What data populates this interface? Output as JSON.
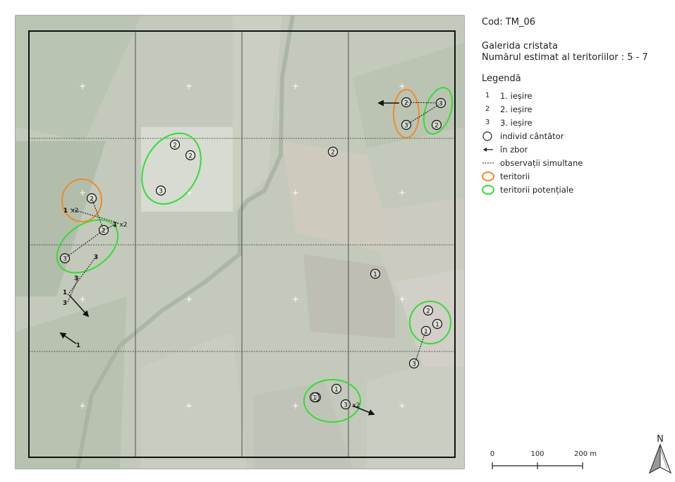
{
  "header": {
    "code": "Cod: TM_06",
    "species": "Galerida cristata",
    "estimate": "Numărul estimat al teritoriilor : 5 - 7"
  },
  "legend": {
    "title": "Legendă",
    "items": [
      {
        "symbol": "1",
        "label": "1. ieșire"
      },
      {
        "symbol": "2",
        "label": "2. ieșire"
      },
      {
        "symbol": "3",
        "label": "3. ieșire"
      },
      {
        "symbol": "circle-icon",
        "label": "individ cântător"
      },
      {
        "symbol": "arrow-left-icon",
        "label": "în zbor"
      },
      {
        "symbol": "dashed-line-icon",
        "label": "observații simultane"
      },
      {
        "symbol": "ellipse-orange-icon",
        "label": "teritorii"
      },
      {
        "symbol": "ellipse-green-icon",
        "label": "teritorii potențiale"
      }
    ]
  },
  "scale": {
    "labels": [
      "0",
      "100",
      "200 m"
    ]
  },
  "north_label": "N",
  "map": {
    "colors": {
      "territory": "#f08a24",
      "potential_territory": "#33dd33",
      "grid": "#333333"
    },
    "singers": [
      "2",
      "2",
      "3",
      "2",
      "2",
      "3",
      "3",
      "2",
      "2",
      "2",
      "3",
      "1",
      "2",
      "1",
      "1",
      "2",
      "3",
      "1",
      "3",
      "1",
      "2",
      "2"
    ],
    "annotations": [
      "1",
      "x2",
      "1",
      "x2",
      "3",
      "3",
      "1",
      "3",
      "1",
      "x2"
    ]
  }
}
